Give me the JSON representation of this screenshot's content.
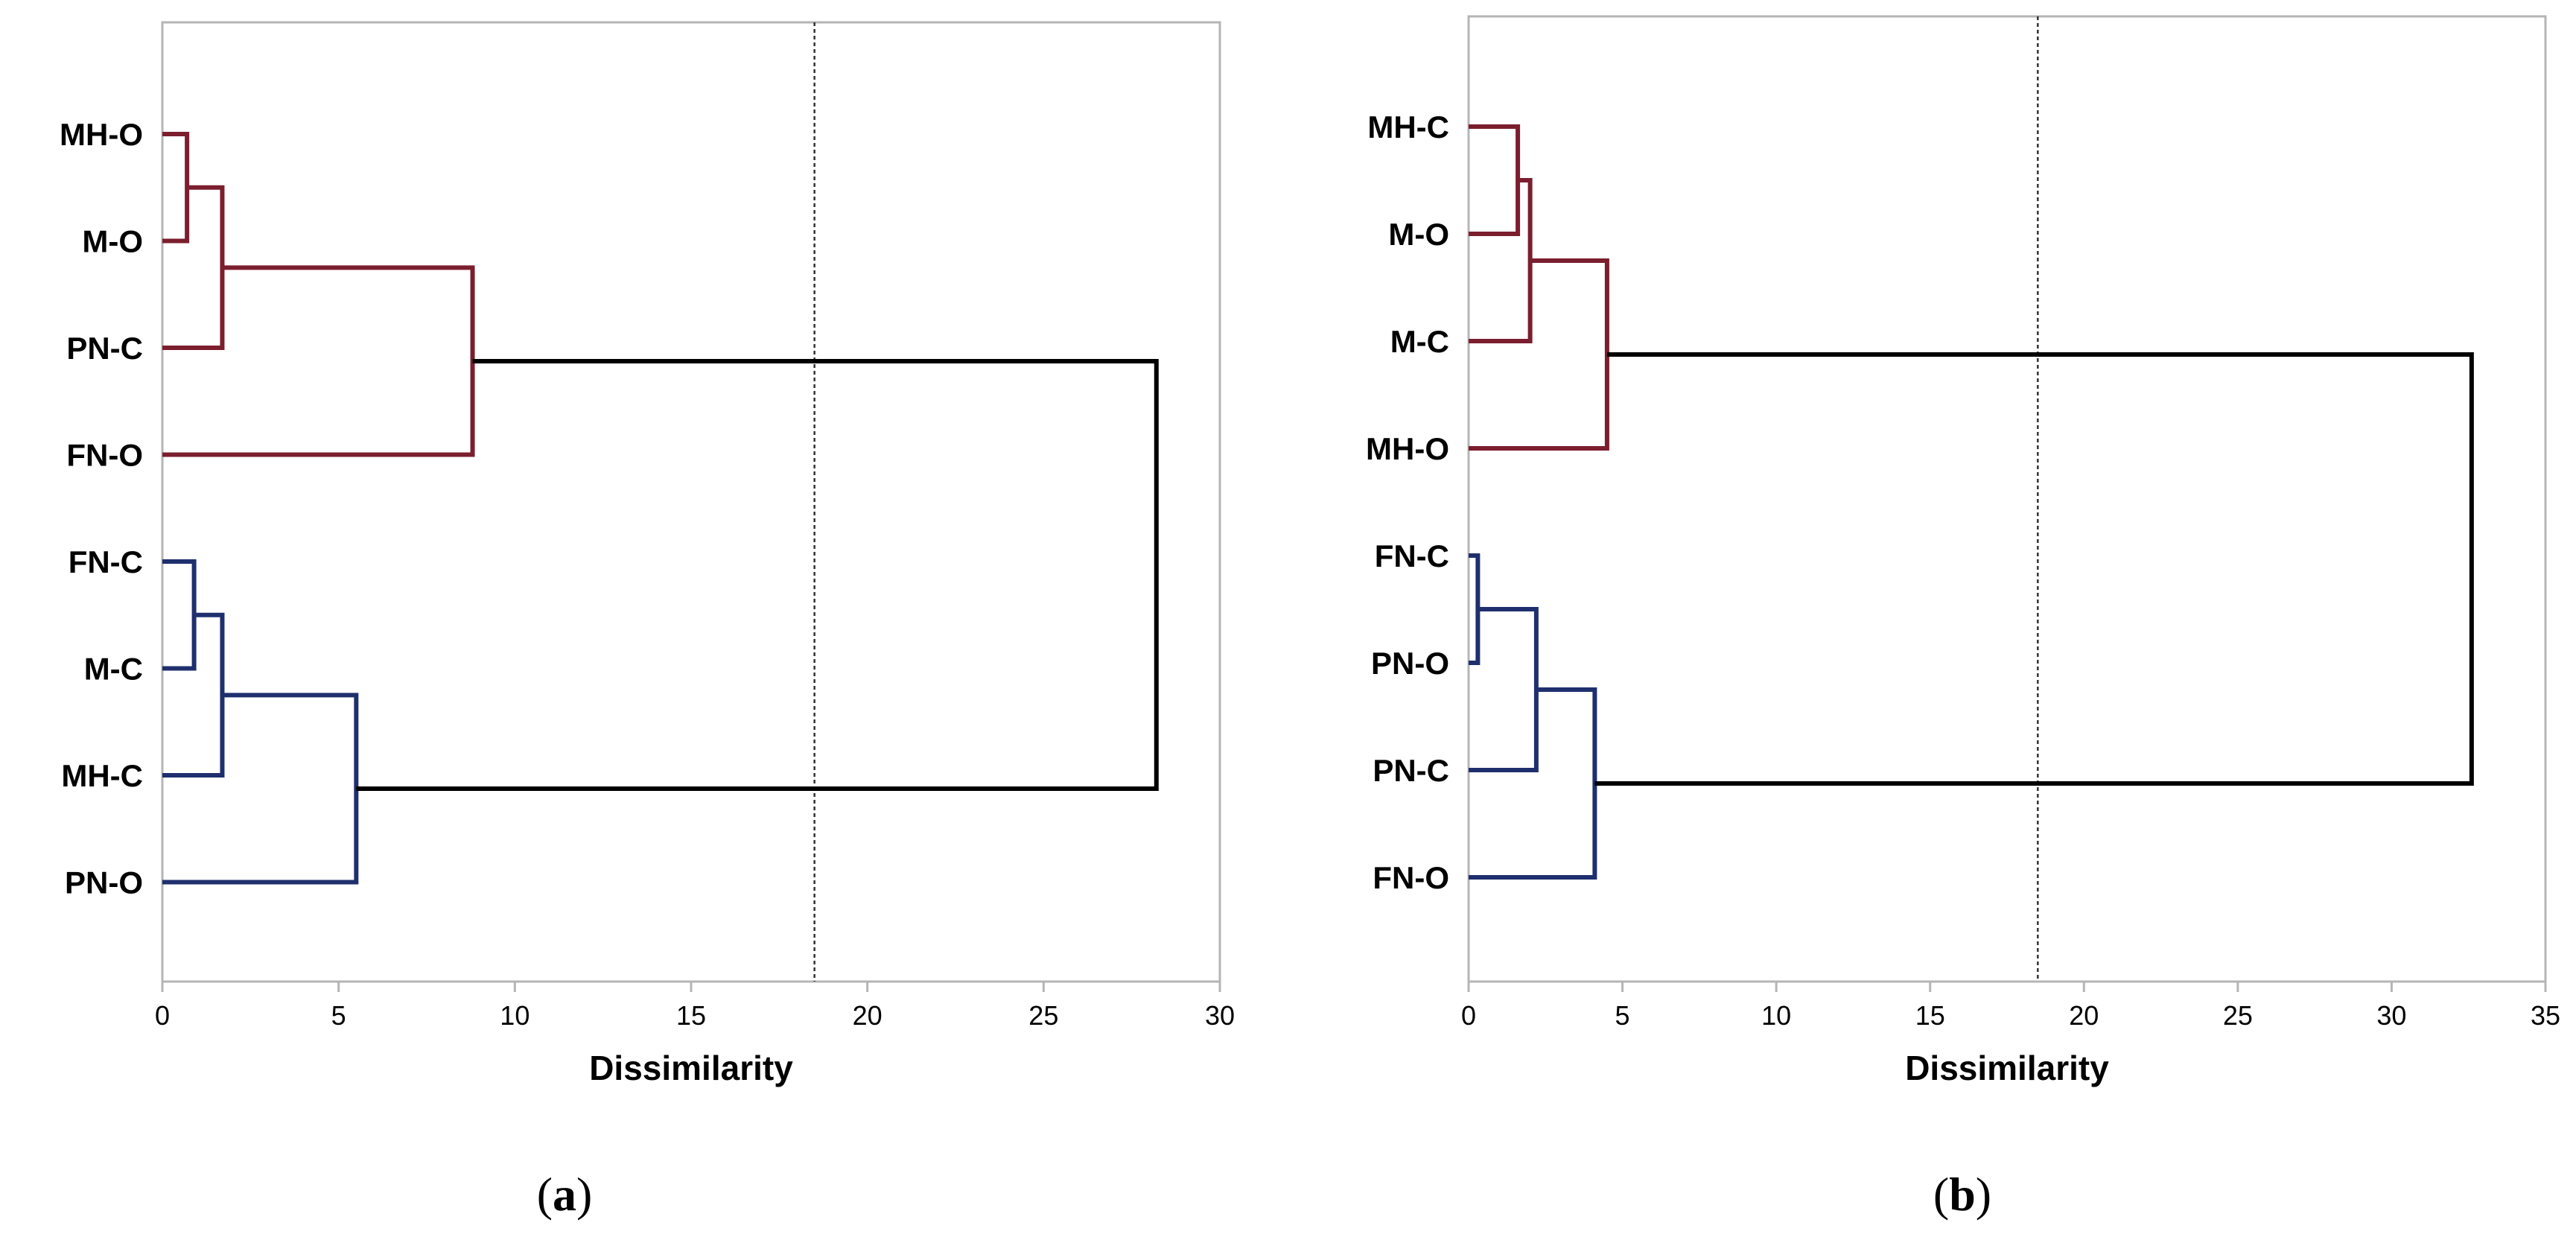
{
  "chart_data": [
    {
      "id": "a",
      "type": "dendrogram",
      "caption_open": "(",
      "caption_letter": "a",
      "caption_close": ")",
      "xlabel": "Dissimilarity",
      "xlim": [
        0,
        30
      ],
      "xticks": [
        0,
        5,
        10,
        15,
        20,
        25,
        30
      ],
      "cutoff": 18.5,
      "leaves": [
        "MH-O",
        "M-O",
        "PN-C",
        "FN-O",
        "FN-C",
        "M-C",
        "MH-C",
        "PN-O"
      ],
      "merges": [
        {
          "a": "L0",
          "b": "L1",
          "height": 0.7,
          "color": "#7b1e2e"
        },
        {
          "a": "N0",
          "b": "L2",
          "height": 1.7,
          "color": "#7b1e2e"
        },
        {
          "a": "N1",
          "b": "L3",
          "height": 8.8,
          "color": "#7b1e2e"
        },
        {
          "a": "L4",
          "b": "L5",
          "height": 0.9,
          "color": "#1f2f6e"
        },
        {
          "a": "N3",
          "b": "L6",
          "height": 1.7,
          "color": "#1f2f6e"
        },
        {
          "a": "N4",
          "b": "L7",
          "height": 5.5,
          "color": "#1f2f6e"
        },
        {
          "a": "N2",
          "b": "N5",
          "height": 28.2,
          "color": "#000000"
        }
      ]
    },
    {
      "id": "b",
      "type": "dendrogram",
      "caption_open": "(",
      "caption_letter": "b",
      "caption_close": ")",
      "xlabel": "Dissimilarity",
      "xlim": [
        0,
        35
      ],
      "xticks": [
        0,
        5,
        10,
        15,
        20,
        25,
        30,
        35
      ],
      "cutoff": 18.5,
      "leaves": [
        "MH-C",
        "M-O",
        "M-C",
        "MH-O",
        "FN-C",
        "PN-O",
        "PN-C",
        "FN-O"
      ],
      "merges": [
        {
          "a": "L0",
          "b": "L1",
          "height": 1.6,
          "color": "#7b1e2e"
        },
        {
          "a": "N0",
          "b": "L2",
          "height": 2.0,
          "color": "#7b1e2e"
        },
        {
          "a": "N1",
          "b": "L3",
          "height": 4.5,
          "color": "#7b1e2e"
        },
        {
          "a": "L4",
          "b": "L5",
          "height": 0.3,
          "color": "#1f2f6e"
        },
        {
          "a": "N3",
          "b": "L6",
          "height": 2.2,
          "color": "#1f2f6e"
        },
        {
          "a": "N4",
          "b": "L7",
          "height": 4.1,
          "color": "#1f2f6e"
        },
        {
          "a": "N2",
          "b": "N5",
          "height": 32.6,
          "color": "#000000"
        }
      ]
    }
  ]
}
